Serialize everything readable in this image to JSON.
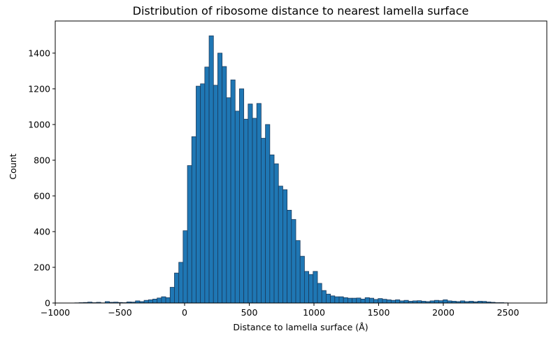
{
  "chart_data": {
    "type": "histogram",
    "title": "Distribution of ribosome distance to nearest lamella surface",
    "xlabel": "Distance to lamella surface (Å)",
    "ylabel": "Count",
    "xlim": [
      -1000,
      2800
    ],
    "ylim": [
      0,
      1580
    ],
    "xticks": [
      -1000,
      -500,
      0,
      500,
      1000,
      1500,
      2000,
      2500
    ],
    "yticks": [
      0,
      200,
      400,
      600,
      800,
      1000,
      1200,
      1400
    ],
    "grid": false,
    "legend": "none",
    "bin_width": 33.5,
    "bin_start": -849,
    "bar_color": "#1f77b4",
    "edge_color": "#1a3a5c",
    "counts": [
      1,
      2,
      3,
      5,
      2,
      4,
      1,
      8,
      4,
      5,
      3,
      2,
      6,
      5,
      12,
      8,
      15,
      18,
      22,
      28,
      35,
      30,
      88,
      168,
      228,
      405,
      770,
      932,
      1215,
      1228,
      1322,
      1497,
      1220,
      1400,
      1325,
      1150,
      1250,
      1075,
      1200,
      1030,
      1115,
      1035,
      1118,
      923,
      1000,
      830,
      780,
      655,
      635,
      520,
      468,
      350,
      262,
      177,
      160,
      177,
      110,
      70,
      50,
      40,
      35,
      35,
      30,
      27,
      27,
      28,
      22,
      30,
      27,
      20,
      25,
      21,
      18,
      15,
      18,
      12,
      15,
      10,
      12,
      13,
      10,
      8,
      12,
      15,
      13,
      18,
      12,
      10,
      8,
      12,
      8,
      10,
      7,
      10,
      9,
      6,
      4,
      2,
      2,
      1
    ]
  }
}
